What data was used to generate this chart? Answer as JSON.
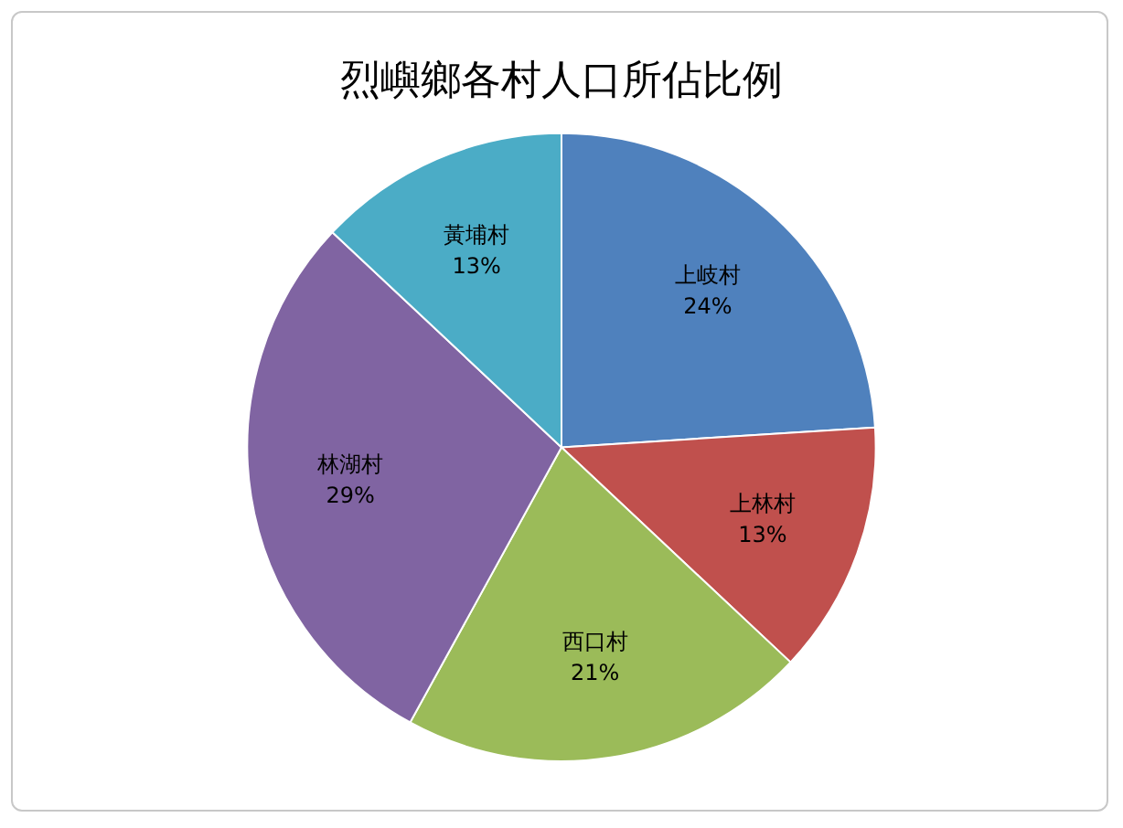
{
  "chart_data": {
    "type": "pie",
    "title": "烈嶼鄉各村人口所佔比例",
    "categories": [
      "上岐村",
      "上林村",
      "西口村",
      "林湖村",
      "黃埔村"
    ],
    "values": [
      24,
      13,
      21,
      29,
      13
    ],
    "colors": [
      "#4f81bd",
      "#c0504d",
      "#9bbb59",
      "#8064a2",
      "#4bacc6"
    ],
    "value_labels": [
      "24%",
      "13%",
      "21%",
      "29%",
      "13%"
    ],
    "legend": false
  }
}
